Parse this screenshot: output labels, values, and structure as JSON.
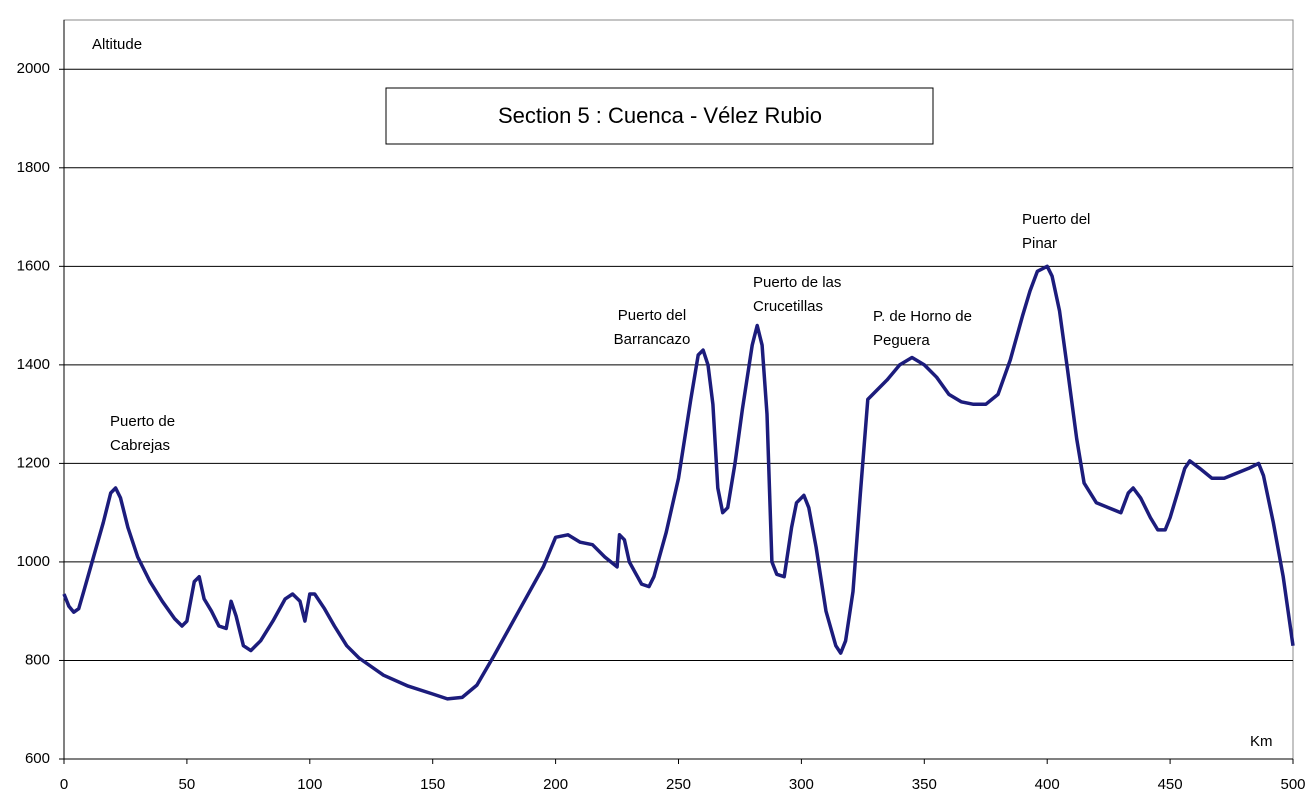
{
  "chart_data": {
    "type": "line",
    "title": "Section 5 : Cuenca - Vélez Rubio",
    "y_label": "Altitude",
    "x_label": "Km",
    "color": "#1c1c7c",
    "grid": true,
    "xlim": [
      0,
      500
    ],
    "xticks": [
      0,
      50,
      100,
      150,
      200,
      250,
      300,
      350,
      400,
      450,
      500
    ],
    "ylim": [
      600,
      2100
    ],
    "yticks": [
      600,
      800,
      1000,
      1200,
      1400,
      1600,
      1800,
      2000
    ],
    "annotations": [
      [
        "Puerto de",
        "Cabrejas"
      ],
      [
        "Puerto del",
        "Barrancazo"
      ],
      [
        "Puerto de las",
        "Crucetillas"
      ],
      [
        "P. de Horno de",
        "Peguera"
      ],
      [
        "Puerto del",
        "Pinar"
      ]
    ],
    "x": [
      0,
      2,
      4,
      6,
      8,
      12,
      16,
      19,
      21,
      23,
      26,
      30,
      35,
      40,
      45,
      48,
      50,
      53,
      55,
      57,
      60,
      63,
      66,
      68,
      70,
      73,
      76,
      80,
      85,
      90,
      93,
      96,
      98,
      100,
      102,
      106,
      110,
      115,
      120,
      130,
      140,
      150,
      156,
      162,
      168,
      175,
      185,
      195,
      200,
      205,
      210,
      215,
      220,
      225,
      226,
      228,
      230,
      235,
      238,
      240,
      245,
      250,
      255,
      258,
      260,
      262,
      264,
      266,
      268,
      270,
      273,
      276,
      280,
      282,
      284,
      286,
      288,
      290,
      293,
      296,
      298,
      301,
      303,
      306,
      310,
      314,
      316,
      318,
      321,
      324,
      327,
      330,
      335,
      340,
      345,
      350,
      355,
      360,
      365,
      370,
      375,
      380,
      385,
      390,
      393,
      396,
      400,
      402,
      405,
      408,
      412,
      415,
      420,
      425,
      430,
      433,
      435,
      438,
      442,
      445,
      448,
      450,
      453,
      456,
      458,
      462,
      467,
      472,
      477,
      482,
      486,
      488,
      492,
      496,
      500
    ],
    "values": [
      935,
      910,
      898,
      905,
      940,
      1010,
      1080,
      1140,
      1150,
      1130,
      1070,
      1010,
      960,
      920,
      885,
      870,
      880,
      960,
      970,
      925,
      900,
      870,
      865,
      920,
      890,
      830,
      820,
      840,
      880,
      925,
      935,
      920,
      880,
      935,
      935,
      905,
      870,
      830,
      805,
      770,
      748,
      732,
      722,
      725,
      750,
      810,
      900,
      990,
      1050,
      1055,
      1040,
      1035,
      1010,
      990,
      1055,
      1045,
      1000,
      955,
      950,
      970,
      1060,
      1170,
      1330,
      1420,
      1430,
      1400,
      1320,
      1150,
      1100,
      1110,
      1200,
      1310,
      1440,
      1480,
      1440,
      1300,
      1000,
      975,
      970,
      1070,
      1120,
      1135,
      1110,
      1030,
      900,
      830,
      815,
      840,
      940,
      1140,
      1330,
      1345,
      1370,
      1400,
      1415,
      1400,
      1375,
      1340,
      1325,
      1320,
      1320,
      1340,
      1410,
      1500,
      1550,
      1590,
      1600,
      1580,
      1510,
      1400,
      1250,
      1160,
      1120,
      1110,
      1100,
      1140,
      1150,
      1130,
      1090,
      1065,
      1065,
      1090,
      1140,
      1190,
      1205,
      1190,
      1170,
      1170,
      1180,
      1190,
      1200,
      1175,
      1080,
      970,
      830
    ]
  }
}
